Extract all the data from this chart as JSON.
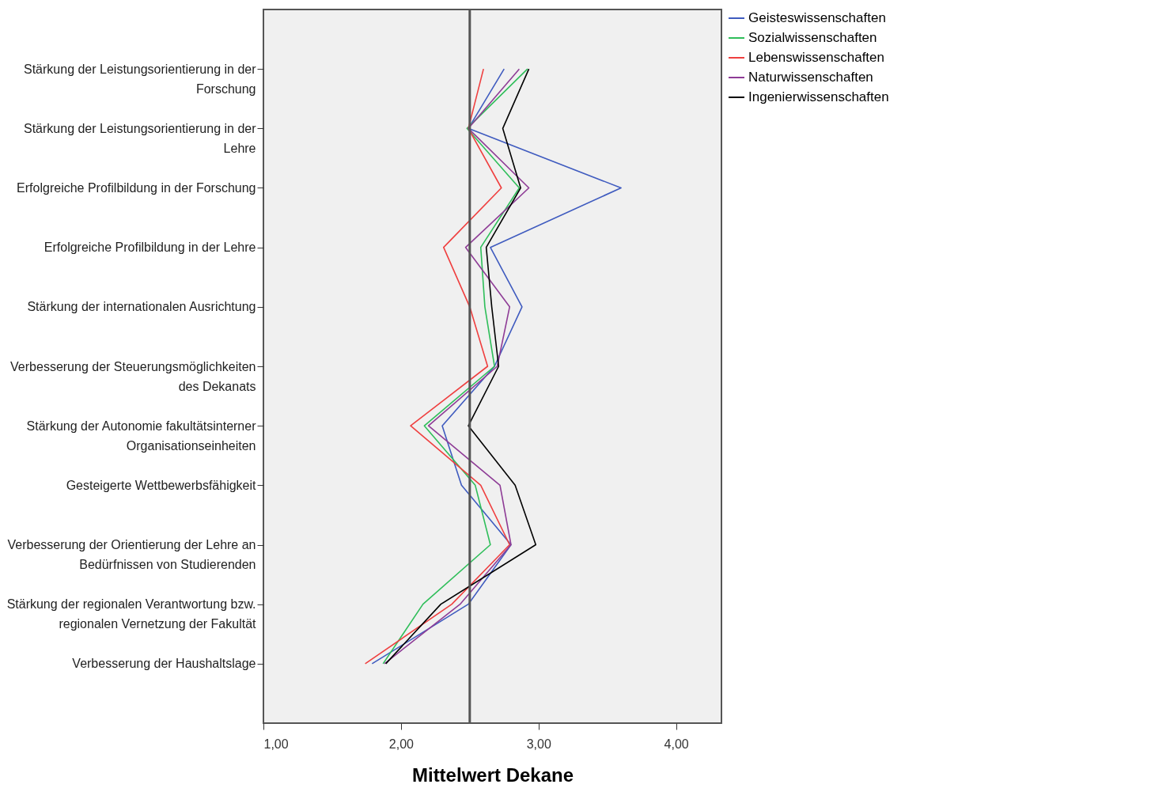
{
  "chart_data": {
    "type": "line",
    "orientation": "horizontal",
    "xlabel": "Mittelwert Dekane",
    "categories": [
      "Stärkung der Leistungsorientierung in der Forschung",
      "Stärkung der Leistungsorientierung in der Lehre",
      "Erfolgreiche Profilbildung in der Forschung",
      "Erfolgreiche Profilbildung in der Lehre",
      "Stärkung der internationalen Ausrichtung",
      "Verbesserung der Steuerungsmöglichkeiten des Dekanats",
      "Stärkung der Autonomie fakultätsinterner Organisationseinheiten",
      "Gesteigerte Wettbewerbsfähigkeit",
      "Verbesserung der Orientierung der Lehre an Bedürfnissen von Studierenden",
      "Stärkung der regionalen Verantwortung bzw. regionalen Vernetzung der Fakultät",
      "Verbesserung der Haushaltslage"
    ],
    "series": [
      {
        "name": "Geisteswissenschaften",
        "color": "#3f5bbf",
        "values": [
          2.75,
          2.49,
          3.6,
          2.65,
          2.88,
          2.68,
          2.3,
          2.44,
          2.8,
          2.49,
          1.79
        ]
      },
      {
        "name": "Sozialwissenschaften",
        "color": "#2fbe5a",
        "values": [
          2.92,
          2.48,
          2.86,
          2.58,
          2.61,
          2.68,
          2.17,
          2.54,
          2.65,
          2.16,
          1.87
        ]
      },
      {
        "name": "Lebenswissenschaften",
        "color": "#ef3f3f",
        "values": [
          2.6,
          2.49,
          2.73,
          2.31,
          2.5,
          2.63,
          2.07,
          2.58,
          2.79,
          2.37,
          1.74
        ]
      },
      {
        "name": "Naturwissenschaften",
        "color": "#8e3c96",
        "values": [
          2.86,
          2.49,
          2.93,
          2.47,
          2.79,
          2.7,
          2.2,
          2.72,
          2.8,
          2.43,
          1.88
        ]
      },
      {
        "name": "Ingenierwissenschaften",
        "color": "#000000",
        "values": [
          2.93,
          2.74,
          2.87,
          2.62,
          2.66,
          2.71,
          2.49,
          2.83,
          2.98,
          2.29,
          1.89
        ]
      }
    ],
    "xlim": [
      1,
      4.33
    ],
    "xticks": [
      {
        "value": 1,
        "label": "1,00"
      },
      {
        "value": 2,
        "label": "2,00"
      },
      {
        "value": 3,
        "label": "3,00"
      },
      {
        "value": 4,
        "label": "4,00"
      }
    ],
    "ref_lines": [
      {
        "axis": "x",
        "value": 2.5,
        "color": "#555555"
      }
    ],
    "legend": "top right",
    "grid": false,
    "marker": "none",
    "line_style": "solid"
  }
}
